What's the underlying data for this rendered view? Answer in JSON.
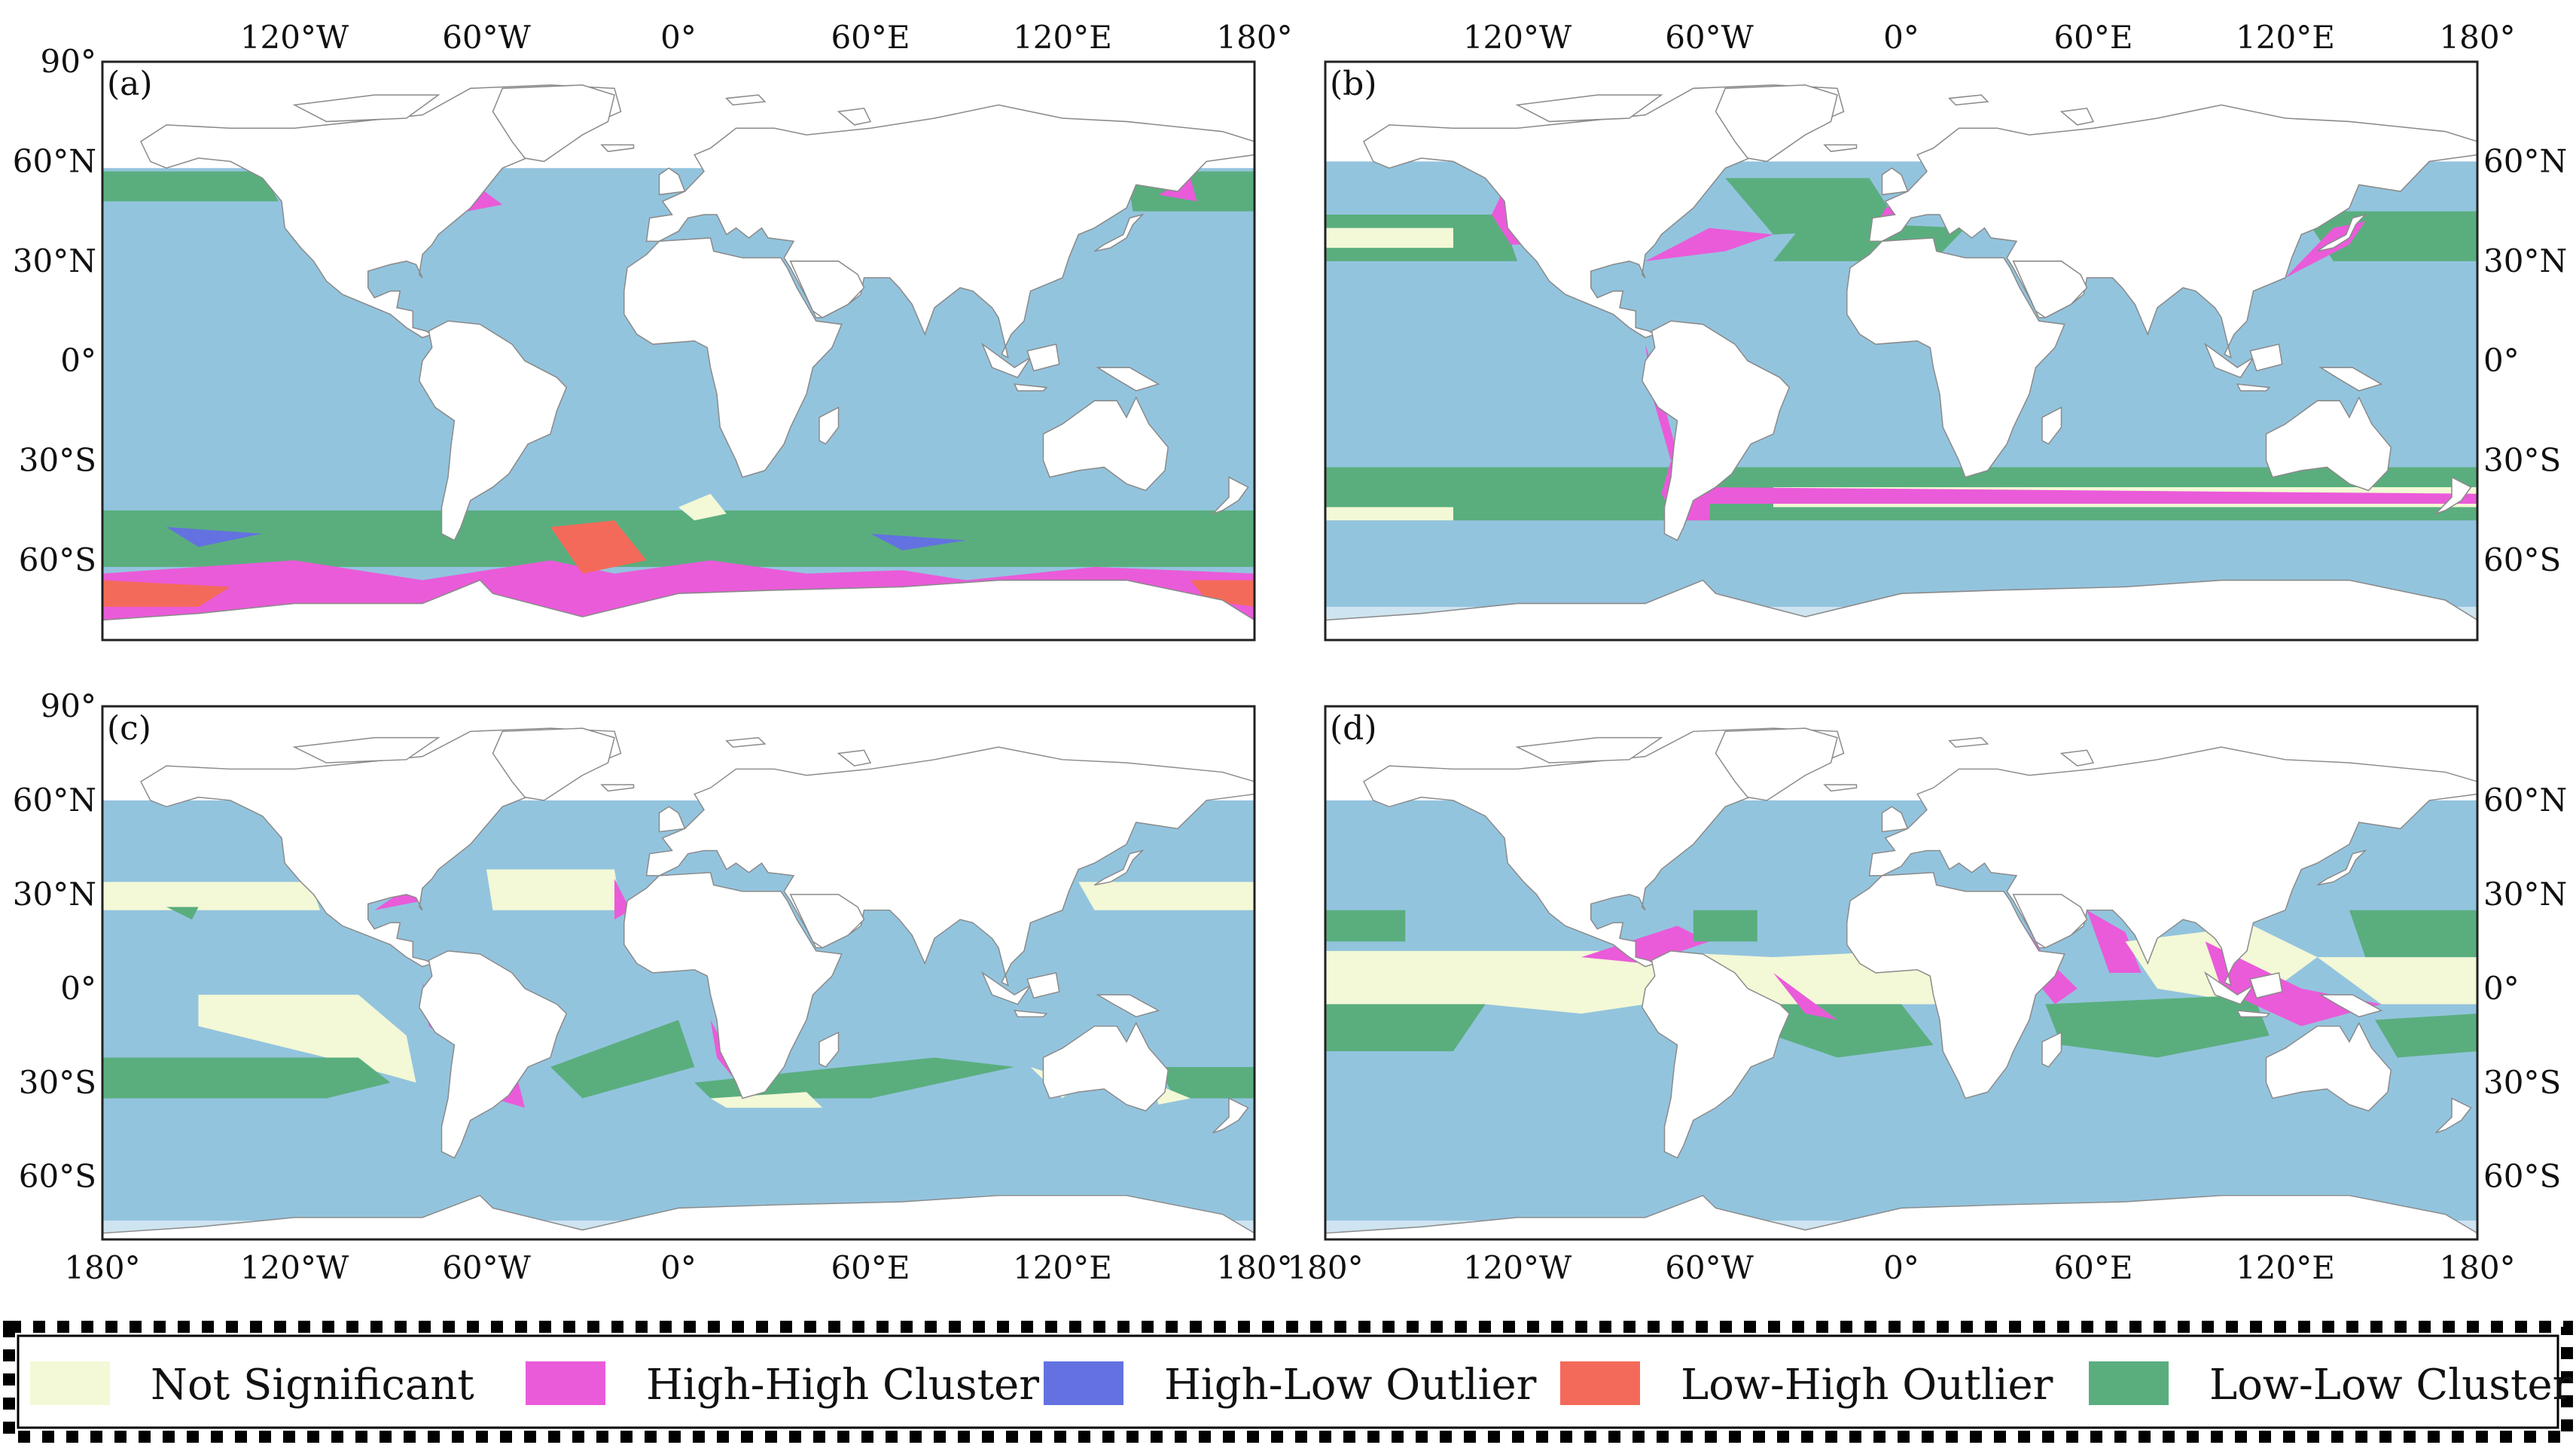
{
  "colors": {
    "ocean": "#93c4de",
    "land": "#ffffff",
    "coast": "#8a8a8a",
    "frame": "#222222",
    "not_significant": "#f3f8d6",
    "high_high": "#ea5bd9",
    "high_low": "#6372e0",
    "low_high": "#f46a5a",
    "low_low": "#5aae7e"
  },
  "axes": {
    "lon_ticks": [
      "180°",
      "120°W",
      "60°W",
      "0°",
      "60°E",
      "120°E",
      "180°"
    ],
    "lat_ticks_left": [
      "90°",
      "60°N",
      "30°N",
      "0°",
      "30°S",
      "60°S"
    ],
    "lat_ticks_right": [
      "60°N",
      "30°N",
      "0°",
      "30°S",
      "60°S"
    ]
  },
  "panels": [
    {
      "id": "a",
      "label": "(a)"
    },
    {
      "id": "b",
      "label": "(b)"
    },
    {
      "id": "c",
      "label": "(c)"
    },
    {
      "id": "d",
      "label": "(d)"
    }
  ],
  "legend": {
    "items": [
      {
        "label": "Not Significant",
        "color_key": "not_significant"
      },
      {
        "label": "High-High Cluster",
        "color_key": "high_high"
      },
      {
        "label": "High-Low Outlier",
        "color_key": "high_low"
      },
      {
        "label": "Low-High Outlier",
        "color_key": "low_high"
      },
      {
        "label": "Low-Low Cluster",
        "color_key": "low_low"
      }
    ]
  }
}
